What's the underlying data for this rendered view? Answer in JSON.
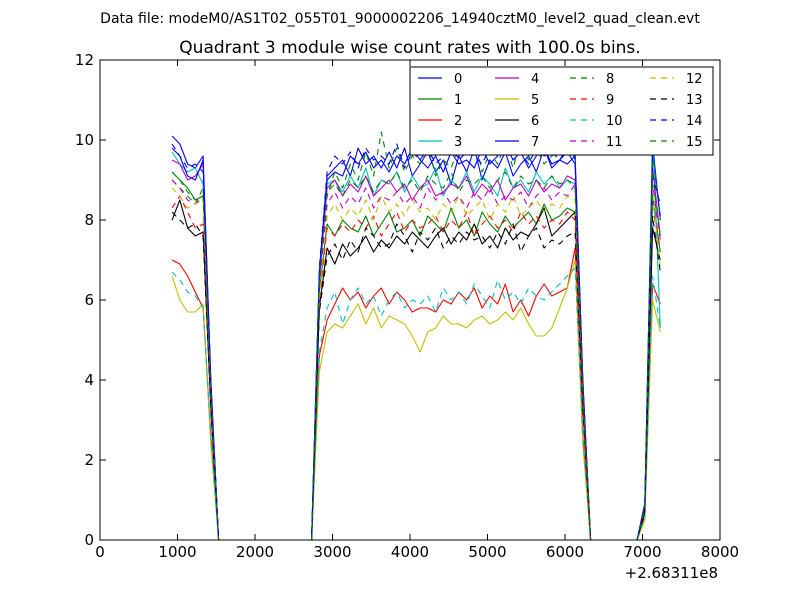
{
  "figure": {
    "suptitle": "Data file: modeM0/AS1T02_055T01_9000002206_14940cztM0_level2_quad_clean.evt"
  },
  "chart_data": {
    "type": "line",
    "title": "Quadrant 3 module wise count rates with 100.0s bins.",
    "xlabel": "",
    "ylabel": "",
    "x_offset_label": "+2.68311e8",
    "xlim": [
      0,
      8000
    ],
    "ylim": [
      0,
      12
    ],
    "xticks": [
      0,
      1000,
      2000,
      3000,
      4000,
      5000,
      6000,
      7000,
      8000
    ],
    "yticks": [
      0,
      2,
      4,
      6,
      8,
      10,
      12
    ],
    "grid": false,
    "legend_placement": "top-right",
    "legend_columns": 4,
    "x_segments": [
      [
        930,
        1030,
        1130,
        1230,
        1330,
        1430,
        1530
      ],
      [
        2730,
        2830,
        2930,
        3030,
        3130,
        3230,
        3330,
        3430,
        3530,
        3630,
        3730,
        3830,
        3930,
        4030,
        4130,
        4230,
        4330,
        4430,
        4530,
        4630,
        4730,
        4830,
        4930,
        5030,
        5130,
        5230,
        5330,
        5430,
        5530,
        5630,
        5730,
        5830,
        5930,
        6030,
        6130,
        6230,
        6330
      ],
      [
        6930,
        7030,
        7130,
        7230
      ]
    ],
    "series": [
      {
        "name": "0",
        "color": "#0000ff",
        "dash": "solid",
        "segments": [
          [
            10.1,
            9.9,
            9.4,
            9.3,
            9.6,
            4.0,
            0.0
          ],
          [
            0.0,
            6.7,
            9.1,
            9.3,
            9.5,
            9.1,
            9.8,
            9.4,
            9.6,
            9.3,
            9.7,
            9.3,
            9.8,
            9.1,
            9.4,
            9.7,
            9.2,
            9.5,
            8.9,
            9.6,
            9.2,
            9.8,
            9.0,
            9.5,
            9.3,
            9.7,
            9.1,
            9.4,
            9.6,
            9.2,
            9.8,
            9.3,
            9.5,
            9.4,
            9.6,
            4.0,
            0.0
          ],
          [
            0.0,
            0.9,
            9.6,
            8.1
          ]
        ]
      },
      {
        "name": "1",
        "color": "#008000",
        "dash": "solid",
        "segments": [
          [
            9.2,
            9.0,
            8.8,
            8.5,
            8.6,
            3.8,
            0.0
          ],
          [
            0.0,
            6.2,
            7.9,
            7.6,
            8.0,
            7.8,
            7.7,
            8.1,
            7.6,
            7.9,
            8.2,
            7.7,
            7.8,
            8.0,
            7.6,
            8.1,
            7.9,
            7.7,
            8.3,
            7.8,
            8.0,
            7.6,
            8.2,
            7.9,
            7.7,
            8.1,
            7.8,
            8.0,
            8.2,
            7.9,
            8.4,
            8.0,
            8.1,
            8.3,
            8.2,
            3.8,
            0.0
          ],
          [
            0.0,
            0.7,
            8.6,
            7.2
          ]
        ]
      },
      {
        "name": "2",
        "color": "#ff0000",
        "dash": "solid",
        "segments": [
          [
            7.0,
            6.9,
            6.6,
            6.2,
            5.8,
            2.6,
            0.0
          ],
          [
            0.0,
            4.6,
            5.5,
            5.9,
            6.3,
            6.0,
            6.2,
            5.8,
            6.1,
            6.3,
            5.9,
            6.2,
            6.0,
            5.7,
            5.8,
            5.8,
            5.7,
            6.0,
            5.9,
            6.2,
            6.0,
            6.3,
            5.8,
            6.1,
            5.9,
            6.4,
            5.7,
            6.0,
            5.6,
            6.1,
            6.4,
            6.1,
            6.2,
            6.3,
            7.3,
            2.6,
            0.0
          ],
          [
            0.0,
            0.6,
            6.4,
            5.9
          ]
        ]
      },
      {
        "name": "3",
        "color": "#00bfbf",
        "dash": "solid",
        "segments": [
          [
            9.7,
            9.4,
            9.2,
            9.3,
            8.9,
            3.9,
            0.0
          ],
          [
            0.0,
            6.6,
            8.9,
            9.0,
            8.7,
            9.1,
            8.8,
            9.3,
            8.6,
            9.0,
            8.9,
            9.2,
            8.7,
            9.1,
            8.8,
            8.9,
            9.3,
            8.6,
            9.0,
            8.8,
            9.2,
            8.7,
            9.1,
            8.9,
            8.6,
            9.3,
            8.8,
            9.0,
            8.7,
            9.2,
            8.9,
            9.1,
            8.8,
            9.0,
            8.9,
            3.9,
            0.0
          ],
          [
            0.0,
            0.8,
            10.2,
            5.3
          ]
        ]
      },
      {
        "name": "4",
        "color": "#bf00bf",
        "dash": "solid",
        "segments": [
          [
            9.5,
            9.4,
            9.0,
            9.1,
            9.4,
            3.9,
            0.0
          ],
          [
            0.0,
            6.5,
            8.8,
            9.0,
            8.6,
            8.9,
            8.7,
            9.1,
            8.6,
            8.8,
            9.0,
            8.7,
            8.9,
            8.5,
            8.8,
            9.0,
            8.6,
            8.7,
            8.9,
            8.8,
            9.1,
            8.6,
            8.9,
            8.7,
            9.0,
            8.5,
            8.8,
            8.9,
            8.6,
            9.0,
            8.7,
            8.9,
            8.8,
            9.1,
            9.0,
            3.9,
            0.0
          ],
          [
            0.0,
            0.8,
            9.3,
            7.6
          ]
        ]
      },
      {
        "name": "5",
        "color": "#bfbf00",
        "dash": "solid",
        "segments": [
          [
            6.6,
            6.0,
            5.7,
            5.7,
            5.9,
            2.4,
            0.0
          ],
          [
            0.0,
            4.2,
            5.2,
            5.4,
            5.3,
            5.6,
            5.9,
            5.4,
            5.8,
            5.3,
            5.6,
            5.5,
            5.4,
            5.1,
            4.7,
            5.2,
            5.3,
            5.6,
            5.4,
            5.4,
            5.3,
            5.5,
            5.6,
            5.4,
            5.5,
            5.7,
            5.5,
            5.8,
            5.4,
            5.1,
            5.1,
            5.3,
            5.8,
            6.3,
            7.0,
            2.4,
            0.0
          ],
          [
            0.0,
            0.5,
            6.0,
            5.2
          ]
        ]
      },
      {
        "name": "6",
        "color": "#000000",
        "dash": "solid",
        "segments": [
          [
            8.0,
            8.5,
            7.8,
            7.6,
            7.7,
            3.3,
            0.0
          ],
          [
            0.0,
            5.8,
            7.3,
            6.9,
            7.4,
            7.1,
            7.3,
            7.6,
            7.2,
            7.5,
            7.3,
            7.6,
            7.4,
            7.7,
            7.5,
            7.3,
            7.6,
            7.8,
            7.4,
            7.7,
            7.5,
            7.9,
            7.4,
            7.6,
            7.3,
            7.8,
            7.5,
            7.7,
            7.6,
            7.9,
            8.3,
            7.6,
            7.8,
            8.0,
            8.2,
            3.3,
            0.0
          ],
          [
            0.0,
            0.7,
            7.8,
            7.0
          ]
        ]
      },
      {
        "name": "7",
        "color": "#0000ff",
        "dash": "solid",
        "segments": [
          [
            9.8,
            9.6,
            9.1,
            9.0,
            9.5,
            4.0,
            0.0
          ],
          [
            0.0,
            6.6,
            9.0,
            9.2,
            9.1,
            9.6,
            9.4,
            9.7,
            9.3,
            9.5,
            9.2,
            9.6,
            9.4,
            9.8,
            9.5,
            9.3,
            9.6,
            9.2,
            9.7,
            9.4,
            9.5,
            9.3,
            9.8,
            9.4,
            9.6,
            9.9,
            9.5,
            9.7,
            9.3,
            9.6,
            9.8,
            9.4,
            9.5,
            9.7,
            9.4,
            4.0,
            0.0
          ],
          [
            0.0,
            0.9,
            9.9,
            8.0
          ]
        ]
      },
      {
        "name": "8",
        "color": "#008000",
        "dash": "dashed",
        "segments": [
          [
            9.0,
            8.8,
            8.6,
            8.4,
            8.8,
            3.7,
            0.0
          ],
          [
            0.0,
            6.4,
            8.6,
            9.2,
            8.8,
            9.4,
            9.0,
            9.7,
            9.1,
            10.2,
            9.3,
            9.8,
            9.2,
            9.6,
            9.4,
            9.9,
            9.1,
            9.5,
            9.3,
            9.8,
            9.6,
            10.1,
            9.2,
            9.7,
            9.4,
            9.9,
            9.3,
            10.0,
            9.5,
            9.8,
            9.4,
            9.6,
            9.7,
            9.9,
            9.5,
            3.7,
            0.0
          ],
          [
            0.0,
            0.8,
            9.8,
            8.0
          ]
        ]
      },
      {
        "name": "9",
        "color": "#ff0000",
        "dash": "dashed",
        "segments": [
          [
            8.3,
            8.6,
            8.2,
            7.8,
            7.9,
            3.4,
            0.0
          ],
          [
            0.0,
            5.9,
            7.8,
            7.6,
            7.9,
            7.7,
            8.0,
            7.8,
            8.1,
            7.6,
            7.9,
            8.2,
            7.7,
            8.0,
            7.8,
            7.9,
            8.1,
            7.7,
            8.0,
            7.8,
            8.2,
            7.6,
            7.9,
            8.1,
            7.8,
            8.0,
            7.7,
            8.2,
            7.9,
            8.1,
            7.8,
            8.0,
            7.9,
            8.2,
            8.0,
            3.4,
            0.0
          ],
          [
            0.0,
            0.7,
            8.3,
            7.3
          ]
        ]
      },
      {
        "name": "10",
        "color": "#00bfbf",
        "dash": "dashed",
        "segments": [
          [
            6.7,
            6.5,
            6.2,
            6.1,
            5.8,
            2.6,
            0.0
          ],
          [
            0.0,
            4.7,
            5.8,
            6.2,
            5.4,
            6.0,
            6.3,
            5.9,
            6.1,
            5.6,
            6.0,
            6.2,
            5.8,
            6.0,
            5.9,
            6.1,
            5.7,
            6.3,
            6.0,
            6.2,
            5.9,
            6.4,
            6.1,
            5.8,
            6.5,
            6.0,
            6.2,
            5.9,
            6.3,
            6.1,
            6.0,
            6.2,
            6.4,
            6.6,
            6.8,
            2.6,
            0.0
          ],
          [
            0.0,
            0.6,
            6.6,
            5.3
          ]
        ]
      },
      {
        "name": "11",
        "color": "#bf00bf",
        "dash": "dashed",
        "segments": [
          [
            9.0,
            8.8,
            8.5,
            8.4,
            8.6,
            3.7,
            0.0
          ],
          [
            0.0,
            6.3,
            8.4,
            8.7,
            8.3,
            8.6,
            8.4,
            8.8,
            8.3,
            8.6,
            8.5,
            8.7,
            8.4,
            8.6,
            8.3,
            8.8,
            8.5,
            8.7,
            8.4,
            8.6,
            8.3,
            8.7,
            8.5,
            8.8,
            8.4,
            8.6,
            8.5,
            8.7,
            8.3,
            8.6,
            8.8,
            8.5,
            8.7,
            8.6,
            8.9,
            3.7,
            0.0
          ],
          [
            0.0,
            0.8,
            8.9,
            7.5
          ]
        ]
      },
      {
        "name": "12",
        "color": "#bfbf00",
        "dash": "dashed",
        "segments": [
          [
            8.8,
            8.6,
            8.3,
            8.4,
            8.5,
            3.6,
            0.0
          ],
          [
            0.0,
            6.0,
            8.1,
            8.4,
            8.0,
            8.3,
            8.1,
            8.5,
            8.0,
            8.6,
            8.2,
            8.4,
            8.1,
            8.5,
            8.2,
            8.3,
            8.0,
            8.4,
            8.2,
            8.6,
            8.1,
            8.3,
            8.5,
            8.0,
            8.4,
            8.2,
            8.6,
            8.1,
            8.3,
            8.5,
            8.2,
            8.4,
            8.3,
            8.6,
            8.5,
            3.6,
            0.0
          ],
          [
            0.0,
            0.7,
            8.7,
            6.8
          ]
        ]
      },
      {
        "name": "13",
        "color": "#000000",
        "dash": "dashed",
        "segments": [
          [
            8.2,
            8.0,
            7.8,
            7.9,
            7.6,
            3.3,
            0.0
          ],
          [
            0.0,
            5.7,
            7.1,
            7.4,
            7.0,
            7.5,
            7.2,
            7.8,
            7.6,
            7.3,
            7.4,
            7.9,
            7.6,
            7.2,
            7.7,
            7.5,
            7.8,
            7.3,
            7.6,
            7.4,
            7.7,
            7.5,
            7.6,
            7.3,
            7.7,
            7.4,
            7.9,
            7.2,
            7.6,
            7.8,
            7.3,
            7.5,
            7.4,
            7.6,
            7.7,
            3.3,
            0.0
          ],
          [
            0.0,
            0.7,
            8.1,
            6.7
          ]
        ]
      },
      {
        "name": "14",
        "color": "#0000ff",
        "dash": "dashed",
        "segments": [
          [
            9.9,
            9.6,
            9.3,
            9.4,
            9.2,
            3.9,
            0.0
          ],
          [
            0.0,
            6.8,
            9.2,
            9.6,
            9.4,
            9.7,
            9.3,
            9.8,
            9.5,
            9.6,
            9.4,
            9.9,
            9.3,
            9.7,
            9.5,
            9.8,
            9.4,
            9.6,
            9.9,
            9.5,
            9.7,
            9.6,
            9.4,
            9.8,
            9.6,
            9.9,
            9.5,
            9.7,
            9.4,
            9.8,
            9.6,
            9.7,
            9.5,
            9.8,
            9.6,
            3.9,
            0.0
          ],
          [
            0.0,
            0.9,
            9.1,
            8.4
          ]
        ]
      },
      {
        "name": "15",
        "color": "#008000",
        "dash": "dashed",
        "segments": [
          [
            9.2,
            9.0,
            8.7,
            8.5,
            8.6,
            3.7,
            0.0
          ],
          [
            0.0,
            6.5,
            8.7,
            8.9,
            8.6,
            9.0,
            8.8,
            9.1,
            8.7,
            9.0,
            8.9,
            9.2,
            8.8,
            9.0,
            8.7,
            9.1,
            8.9,
            8.8,
            9.2,
            8.7,
            9.0,
            8.9,
            9.1,
            8.8,
            9.0,
            9.2,
            8.8,
            9.1,
            8.9,
            9.0,
            8.8,
            9.1,
            8.9,
            9.0,
            8.8,
            3.7,
            0.0
          ],
          [
            0.0,
            0.8,
            9.1,
            7.6
          ]
        ]
      }
    ]
  }
}
